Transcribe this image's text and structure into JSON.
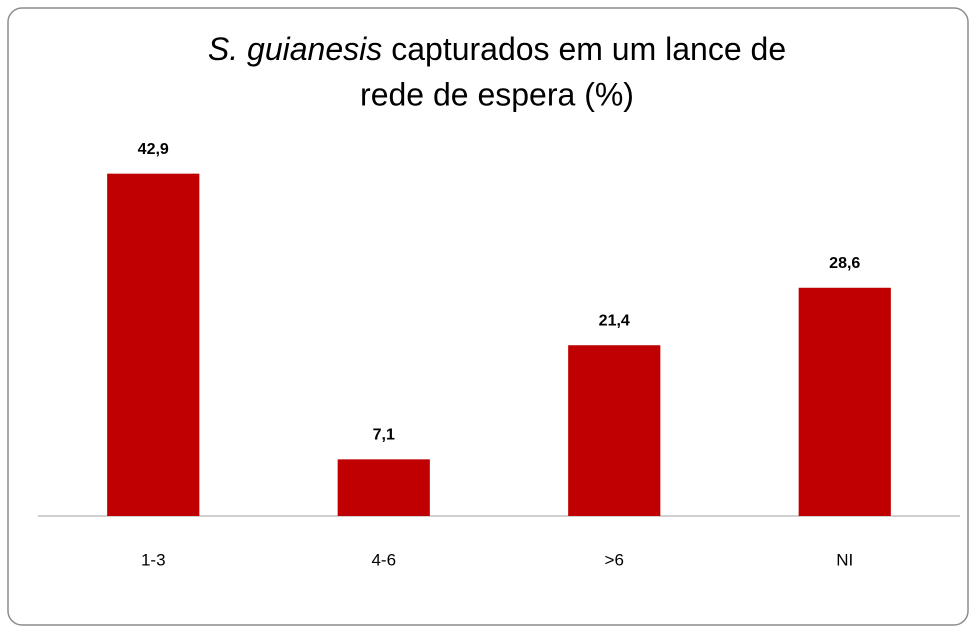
{
  "chart_data": {
    "type": "bar",
    "title": {
      "species": "S. guianesis",
      "lines": [
        "capturados em um lance de",
        "rede de espera (%)"
      ]
    },
    "categories": [
      "1-3",
      "4-6",
      ">6",
      "NI"
    ],
    "values": [
      42.9,
      7.1,
      21.4,
      28.6
    ],
    "value_labels": [
      "42,9",
      "7,1",
      "21,4",
      "28,6"
    ],
    "color": "#c00000",
    "ylim": [
      0,
      50
    ]
  }
}
